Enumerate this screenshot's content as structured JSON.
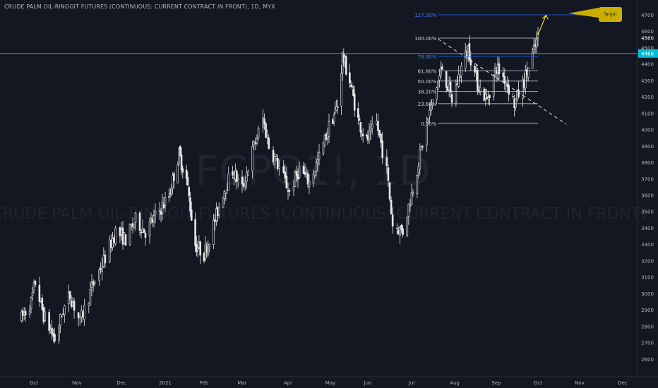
{
  "header": {
    "title": "CRUDE PALM OIL-RINGGIT FUTURES (CONTINUOUS: CURRENT CONTRACT IN FRONT), 1D, MYX"
  },
  "watermark": {
    "symbol": "FCPO1!, 1D",
    "name": "CRUDE PALM OIL-RINGGIT FUTURES (CONTINUOUS: CURRENT CONTRACT IN FRONT)"
  },
  "colors": {
    "background": "#131722",
    "candle": "#e8e8e8",
    "price_line": "#00bcd4",
    "fib_level": "#d1d4dc",
    "fib_786": "#2962ff",
    "fib_1272": "#2962ff",
    "target_callout": "#c9b000",
    "arrow": "#ffeb3b",
    "axis_text": "#b2b5be"
  },
  "chart_data": {
    "type": "candlestick",
    "x_axis": {
      "ticks": [
        "Oct",
        "Nov",
        "Dec",
        "2021",
        "Feb",
        "Mar",
        "Apr",
        "May",
        "Jun",
        "Jul",
        "Aug",
        "Sep",
        "Oct",
        "Nov",
        "Dec"
      ]
    },
    "y_axis": {
      "range": [
        2500,
        4750
      ],
      "ticks": [
        2600,
        2700,
        2800,
        2900,
        3000,
        3100,
        3200,
        3300,
        3400,
        3500,
        3600,
        3700,
        3800,
        3900,
        4000,
        4100,
        4200,
        4300,
        4400,
        4500,
        4600,
        4700
      ]
    },
    "current_price": {
      "value": 4466,
      "label": "4466"
    },
    "last_high_label": {
      "value": 4560,
      "label": "4560"
    },
    "close_path": [
      {
        "date": "2020-09-22",
        "close": 2850
      },
      {
        "date": "2020-09-29",
        "close": 2950
      },
      {
        "date": "2020-10-02",
        "close": 3070
      },
      {
        "date": "2020-10-08",
        "close": 2870
      },
      {
        "date": "2020-10-16",
        "close": 2720
      },
      {
        "date": "2020-10-22",
        "close": 2900
      },
      {
        "date": "2020-10-27",
        "close": 2990
      },
      {
        "date": "2020-11-03",
        "close": 2830
      },
      {
        "date": "2020-11-12",
        "close": 3060
      },
      {
        "date": "2020-11-20",
        "close": 3220
      },
      {
        "date": "2020-11-27",
        "close": 3380
      },
      {
        "date": "2020-12-04",
        "close": 3330
      },
      {
        "date": "2020-12-11",
        "close": 3450
      },
      {
        "date": "2020-12-18",
        "close": 3380
      },
      {
        "date": "2020-12-25",
        "close": 3470
      },
      {
        "date": "2021-01-04",
        "close": 3600
      },
      {
        "date": "2021-01-12",
        "close": 3850
      },
      {
        "date": "2021-01-18",
        "close": 3700
      },
      {
        "date": "2021-01-25",
        "close": 3300
      },
      {
        "date": "2021-02-01",
        "close": 3240
      },
      {
        "date": "2021-02-08",
        "close": 3420
      },
      {
        "date": "2021-02-15",
        "close": 3620
      },
      {
        "date": "2021-02-22",
        "close": 3750
      },
      {
        "date": "2021-03-01",
        "close": 3640
      },
      {
        "date": "2021-03-08",
        "close": 3870
      },
      {
        "date": "2021-03-15",
        "close": 4070
      },
      {
        "date": "2021-03-19",
        "close": 3900
      },
      {
        "date": "2021-03-26",
        "close": 3770
      },
      {
        "date": "2021-04-02",
        "close": 3620
      },
      {
        "date": "2021-04-09",
        "close": 3760
      },
      {
        "date": "2021-04-16",
        "close": 3680
      },
      {
        "date": "2021-04-23",
        "close": 3830
      },
      {
        "date": "2021-04-30",
        "close": 4020
      },
      {
        "date": "2021-05-07",
        "close": 4150
      },
      {
        "date": "2021-05-11",
        "close": 4450
      },
      {
        "date": "2021-05-17",
        "close": 4300
      },
      {
        "date": "2021-05-24",
        "close": 4060
      },
      {
        "date": "2021-05-31",
        "close": 3930
      },
      {
        "date": "2021-06-07",
        "close": 4040
      },
      {
        "date": "2021-06-14",
        "close": 3750
      },
      {
        "date": "2021-06-18",
        "close": 3420
      },
      {
        "date": "2021-06-25",
        "close": 3380
      },
      {
        "date": "2021-07-02",
        "close": 3650
      },
      {
        "date": "2021-07-09",
        "close": 3920
      },
      {
        "date": "2021-07-16",
        "close": 4180
      },
      {
        "date": "2021-07-23",
        "close": 4380
      },
      {
        "date": "2021-07-30",
        "close": 4180
      },
      {
        "date": "2021-08-06",
        "close": 4380
      },
      {
        "date": "2021-08-11",
        "close": 4500
      },
      {
        "date": "2021-08-18",
        "close": 4280
      },
      {
        "date": "2021-08-25",
        "close": 4180
      },
      {
        "date": "2021-09-01",
        "close": 4380
      },
      {
        "date": "2021-09-08",
        "close": 4300
      },
      {
        "date": "2021-09-14",
        "close": 4160
      },
      {
        "date": "2021-09-21",
        "close": 4300
      },
      {
        "date": "2021-09-28",
        "close": 4480
      },
      {
        "date": "2021-10-01",
        "close": 4560
      }
    ],
    "fibonacci": {
      "levels": [
        {
          "ratio_label": "0.00%",
          "price": 4040
        },
        {
          "ratio_label": "23.60%",
          "price": 4160
        },
        {
          "ratio_label": "38.20%",
          "price": 4235
        },
        {
          "ratio_label": "50.00%",
          "price": 4298
        },
        {
          "ratio_label": "61.80%",
          "price": 4360
        },
        {
          "ratio_label": "78.60%",
          "price": 4448
        },
        {
          "ratio_label": "100.00%",
          "price": 4560
        },
        {
          "ratio_label": "127.20%",
          "price": 4702
        }
      ],
      "x_start": "2021-07-20",
      "x_end": "2021-10-01",
      "x_ext_end": "2021-11-26"
    },
    "trendline": {
      "start": {
        "date": "2021-07-20",
        "price": 4555
      },
      "end": {
        "date": "2021-10-22",
        "price": 4035
      },
      "style": "dashed"
    },
    "target": {
      "label": "Target",
      "price": 4702
    },
    "arrow": {
      "from": {
        "date": "2021-10-01",
        "price": 4580
      },
      "to": {
        "date": "2021-10-07",
        "price": 4700
      }
    }
  }
}
